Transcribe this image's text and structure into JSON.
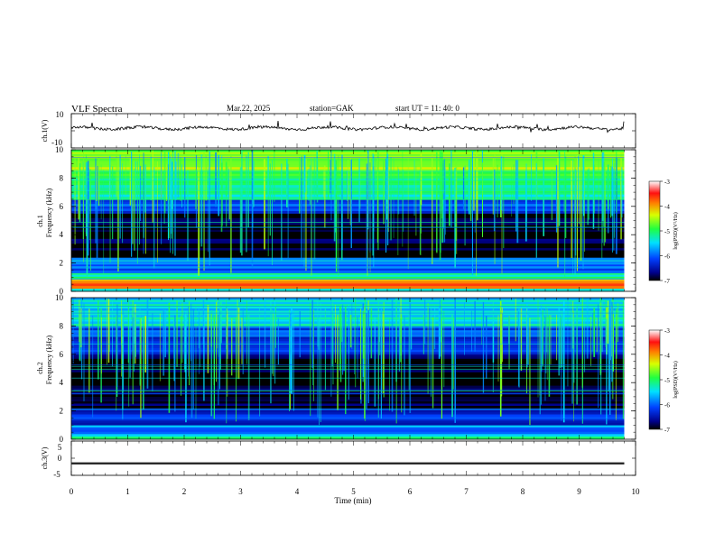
{
  "header": {
    "title": "VLF  Spectra",
    "date": "Mar.22, 2025",
    "station": "station=GAK",
    "start": "start  UT  =    11: 40: 0"
  },
  "chart_data": [
    {
      "type": "line",
      "panel": "ch1-waveform",
      "ylabel": "ch.1(V)",
      "yticks": [
        "10",
        "-10"
      ],
      "ylim": [
        -10,
        10
      ],
      "xlim": [
        0,
        10
      ],
      "note": "noisy waveform near +1.5 V"
    },
    {
      "type": "heatmap",
      "panel": "ch1-spectrogram",
      "ylabel": "ch.1\nFrequency  (kHz)",
      "ylabel_line1": "ch.1",
      "ylabel_line2": "Frequency  (kHz)",
      "yticks": [
        "0",
        "2",
        "4",
        "6",
        "8",
        "10"
      ],
      "ylim": [
        0,
        10
      ],
      "xlim": [
        0,
        9.8
      ],
      "colorbar": {
        "label": "log(PSD)(V²/Hz)",
        "ticks": [
          "-3",
          "-4",
          "-5",
          "-6",
          "-7"
        ],
        "range": [
          -7,
          -3
        ]
      },
      "bands_khz": [
        {
          "from": 0.0,
          "to": 0.2,
          "level": -5.5
        },
        {
          "from": 0.2,
          "to": 0.9,
          "level": -4.0
        },
        {
          "from": 0.9,
          "to": 1.3,
          "level": -5.2
        },
        {
          "from": 1.3,
          "to": 2.4,
          "level": -6.0
        },
        {
          "from": 2.4,
          "to": 5.5,
          "level": -7.0
        },
        {
          "from": 5.5,
          "to": 6.5,
          "level": -6.2
        },
        {
          "from": 6.5,
          "to": 8.0,
          "level": -5.2
        },
        {
          "from": 8.0,
          "to": 10.0,
          "level": -4.6
        }
      ]
    },
    {
      "type": "heatmap",
      "panel": "ch2-spectrogram",
      "ylabel_line1": "ch.2",
      "ylabel_line2": "Frequency  (kHz)",
      "yticks": [
        "0",
        "2",
        "4",
        "6",
        "8",
        "10"
      ],
      "ylim": [
        0,
        10
      ],
      "xlim": [
        0,
        9.8
      ],
      "colorbar": {
        "label": "log(PSD)(V²/Hz)",
        "ticks": [
          "-3",
          "-4",
          "-5",
          "-6",
          "-7"
        ],
        "range": [
          -7,
          -3
        ]
      },
      "bands_khz": [
        {
          "from": 0.0,
          "to": 0.2,
          "level": -5.0
        },
        {
          "from": 0.2,
          "to": 1.0,
          "level": -5.8
        },
        {
          "from": 1.0,
          "to": 2.2,
          "level": -6.2
        },
        {
          "from": 2.2,
          "to": 6.0,
          "level": -7.0
        },
        {
          "from": 6.0,
          "to": 8.0,
          "level": -6.2
        },
        {
          "from": 8.0,
          "to": 10.0,
          "level": -5.5
        }
      ]
    },
    {
      "type": "line",
      "panel": "ch3-waveform",
      "ylabel": "ch.3(V)",
      "yticks": [
        "5",
        "0",
        "-5"
      ],
      "ylim": [
        -5,
        5
      ],
      "xlim": [
        0,
        10
      ],
      "note": "flat band near -1.5 V"
    }
  ],
  "xaxis": {
    "label": "Time  (min)",
    "ticks": [
      "0",
      "1",
      "2",
      "3",
      "4",
      "5",
      "6",
      "7",
      "8",
      "9",
      "10"
    ],
    "range": [
      0,
      10
    ]
  }
}
